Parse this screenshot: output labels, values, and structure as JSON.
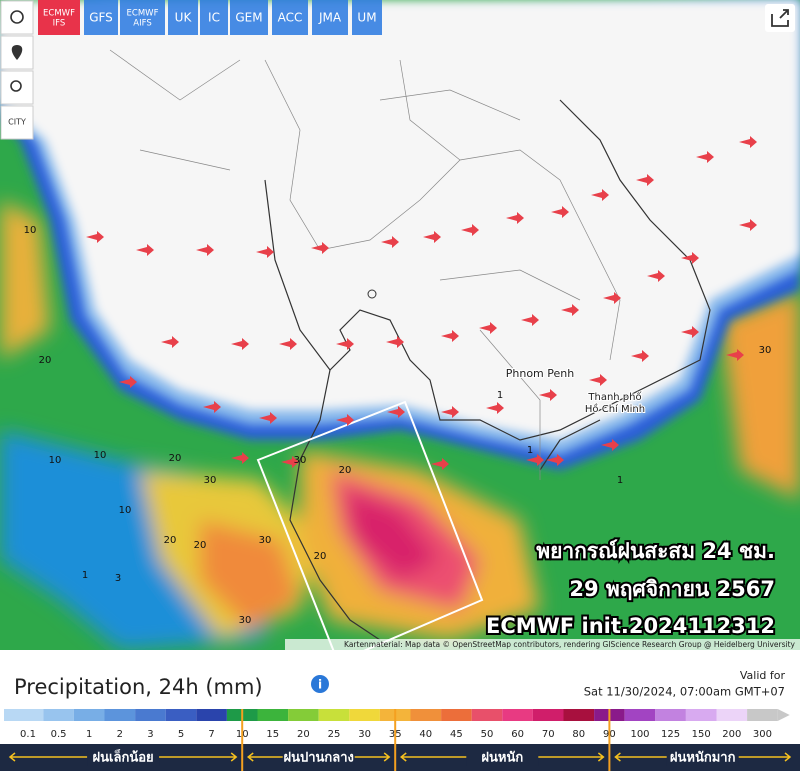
{
  "toolbar": {
    "models": [
      {
        "label": [
          "ECMWF",
          "IFS"
        ],
        "active": true
      },
      {
        "label": [
          "GFS"
        ],
        "active": false
      },
      {
        "label": [
          "ECMWF",
          "AIFS"
        ],
        "active": false
      },
      {
        "label": [
          "UK"
        ],
        "active": false
      },
      {
        "label": [
          "IC"
        ],
        "active": false
      },
      {
        "label": [
          "GEM"
        ],
        "active": false
      },
      {
        "label": [
          "ACC"
        ],
        "active": false
      },
      {
        "label": [
          "JMA"
        ],
        "active": false
      },
      {
        "label": [
          "UM"
        ],
        "active": false
      }
    ],
    "city_button": "CITY"
  },
  "overlay": {
    "lines": [
      "พยากรณ์ฝนสะสม 24 ชม.",
      "29 พฤศจิกายน 2567",
      "ECMWF init.2024112312"
    ]
  },
  "map": {
    "places": [
      "Phnom Penh",
      "Thanh phố",
      "Hồ Chí Minh"
    ],
    "contour_labels": [
      "10",
      "20",
      "10",
      "20",
      "30",
      "30",
      "20",
      "10",
      "1",
      "3",
      "20",
      "30",
      "20",
      "30",
      "1",
      "1",
      "30",
      "1",
      "10",
      "20"
    ],
    "attribution": "Kartenmaterial: Map data © OpenStreetMap contributors, rendering GIScience Research Group @ Heidelberg University"
  },
  "legend": {
    "title": "Precipitation, 24h (mm)",
    "valid_label": "Valid for",
    "valid_time": "Sat 11/30/2024, 07:00am GMT+07",
    "ticks": [
      0.1,
      0.5,
      1,
      2,
      3,
      5,
      7,
      10,
      15,
      20,
      25,
      30,
      35,
      40,
      45,
      50,
      60,
      70,
      80,
      90,
      100,
      125,
      150,
      200,
      300
    ],
    "colors": [
      "#b8d8f4",
      "#98c4ee",
      "#78aee6",
      "#5c94dc",
      "#4a7ad0",
      "#3a5ec2",
      "#2a44ac",
      "#1e9a48",
      "#3cb43c",
      "#84cc38",
      "#c8e03a",
      "#f0d83a",
      "#f4b43a",
      "#f0903a",
      "#ec6e3a",
      "#e8506a",
      "#e83a82",
      "#d01e6a",
      "#a8103e",
      "#8a1a8a",
      "#a244c2",
      "#c282e0",
      "#d8aaf0",
      "#ecd4f8",
      "#c8c8c8"
    ],
    "categories": [
      {
        "label": "ฝนเล็กน้อย"
      },
      {
        "label": "ฝนปานกลาง"
      },
      {
        "label": "ฝนหนัก"
      },
      {
        "label": "ฝนหนักมาก"
      }
    ],
    "boundaries": [
      10,
      35,
      90
    ]
  }
}
